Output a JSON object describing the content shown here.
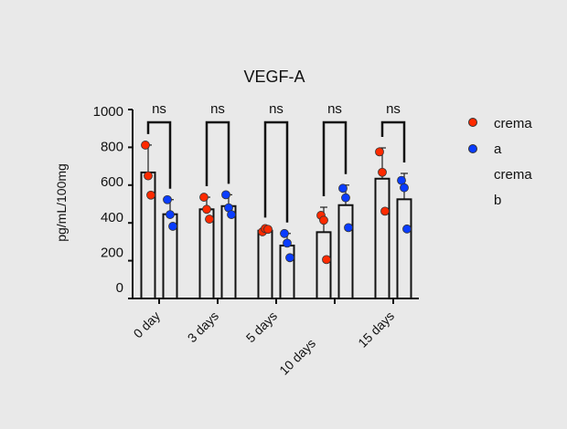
{
  "chart_data": {
    "type": "bar",
    "title": "VEGF-A",
    "ylabel": "pg/mL/100mg",
    "xlabel": "",
    "ylim": [
      0,
      1000
    ],
    "yticks": [
      0,
      200,
      400,
      600,
      800,
      1000
    ],
    "grid": false,
    "legend_position": "right",
    "categories": [
      "0 day",
      "3 days",
      "5 days",
      "10 days",
      "15 days"
    ],
    "series": [
      {
        "name": "crema a",
        "legend_lines": [
          "crema",
          "a"
        ],
        "color": "#ff2a00",
        "values": [
          667,
          472,
          359,
          351,
          634
        ],
        "error_top": [
          812,
          536,
          370,
          483,
          797
        ],
        "points": [
          [
            812,
            649,
            547
          ],
          [
            536,
            472,
            420
          ],
          [
            353,
            370,
            366
          ],
          [
            440,
            414,
            206
          ],
          [
            776,
            668,
            462
          ]
        ]
      },
      {
        "name": "crema b",
        "legend_lines": [
          "crema",
          "b"
        ],
        "color": "#0a3cff",
        "values": [
          446,
          489,
          280,
          494,
          525
        ],
        "error_top": [
          523,
          549,
          344,
          600,
          662
        ],
        "points": [
          [
            523,
            444,
            382
          ],
          [
            549,
            480,
            444
          ],
          [
            344,
            293,
            216
          ],
          [
            583,
            533,
            375
          ],
          [
            625,
            586,
            368
          ]
        ]
      }
    ],
    "annotations": [
      "ns",
      "ns",
      "ns",
      "ns",
      "ns"
    ]
  }
}
